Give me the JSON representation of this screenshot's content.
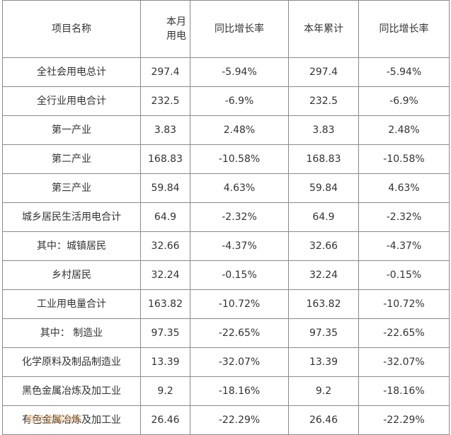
{
  "table": {
    "headers": [
      "项目名称",
      "本月用电",
      "同比增长率",
      "本年累计",
      "同比增长率"
    ],
    "rows": [
      [
        "全社会用电总计",
        "297.4",
        "-5.94%",
        "297.4",
        "-5.94%"
      ],
      [
        "全行业用电合计",
        "232.5",
        "-6.9%",
        "232.5",
        "-6.9%"
      ],
      [
        "第一产业",
        "3.83",
        "2.48%",
        "3.83",
        "2.48%"
      ],
      [
        "第二产业",
        "168.83",
        "-10.58%",
        "168.83",
        "-10.58%"
      ],
      [
        "第三产业",
        "59.84",
        "4.63%",
        "59.84",
        "4.63%"
      ],
      [
        "城乡居民生活用电合计",
        "64.9",
        "-2.32%",
        "64.9",
        "-2.32%"
      ],
      [
        "其中：城镇居民",
        "32.66",
        "-4.37%",
        "32.66",
        "-4.37%"
      ],
      [
        "乡村居民",
        "32.24",
        "-0.15%",
        "32.24",
        "-0.15%"
      ],
      [
        "工业用电量合计",
        "163.82",
        "-10.72%",
        "163.82",
        "-10.72%"
      ],
      [
        "其中： 制造业",
        "97.35",
        "-22.65%",
        "97.35",
        "-22.65%"
      ],
      [
        "化学原料及制品制造业",
        "13.39",
        "-32.07%",
        "13.39",
        "-32.07%"
      ],
      [
        "黑色金属冶炼及加工业",
        "9.2",
        "-18.16%",
        "9.2",
        "-18.16%"
      ],
      [
        "有色金属冶炼及加工业",
        "26.46",
        "-22.29%",
        "26.46",
        "-22.29%"
      ]
    ]
  },
  "watermark": "有色金属冶炼"
}
